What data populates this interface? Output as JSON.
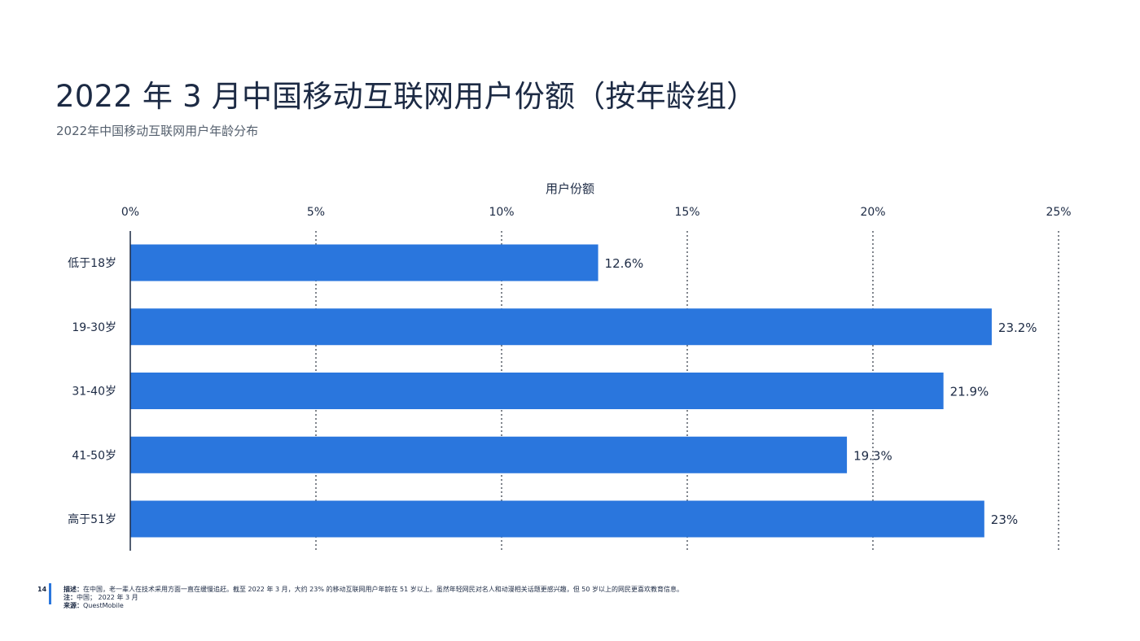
{
  "page": {
    "title": "2022 年 3 月中国移动互联网用户份额（按年龄组）",
    "subtitle": "2022年中国移动互联网用户年龄分布",
    "page_number": "14"
  },
  "footer": {
    "desc_label": "描述：",
    "desc_text": "在中国，老一辈人在技术采用方面一直在缓慢追赶。截至 2022 年 3 月，大约 23% 的移动互联网用户年龄在 51 岁以上。虽然年轻网民对名人和动漫相关话题更感兴趣，但 50 岁以上的网民更喜欢教育信息。",
    "note_label": "注：",
    "note_text": "中国； 2022 年 3 月",
    "source_label": "来源：",
    "source_text": "QuestMobile"
  },
  "colors": {
    "bar": "#2a76dd",
    "text": "#1c2a44",
    "grid": "#2b3440"
  },
  "chart_data": {
    "type": "bar",
    "orientation": "horizontal",
    "xlabel": "用户份额",
    "xlabel_position": "top",
    "ylabel": "",
    "xlim": [
      0,
      25
    ],
    "x_ticks": [
      "0%",
      "5%",
      "10%",
      "15%",
      "20%",
      "25%"
    ],
    "categories": [
      "低于18岁",
      "19-30岁",
      "31-40岁",
      "41-50岁",
      "高于51岁"
    ],
    "values": [
      12.6,
      23.2,
      21.9,
      19.3,
      23
    ],
    "value_labels": [
      "12.6%",
      "23.2%",
      "21.9%",
      "19.3%",
      "23%"
    ],
    "grid": "vertical dotted"
  }
}
